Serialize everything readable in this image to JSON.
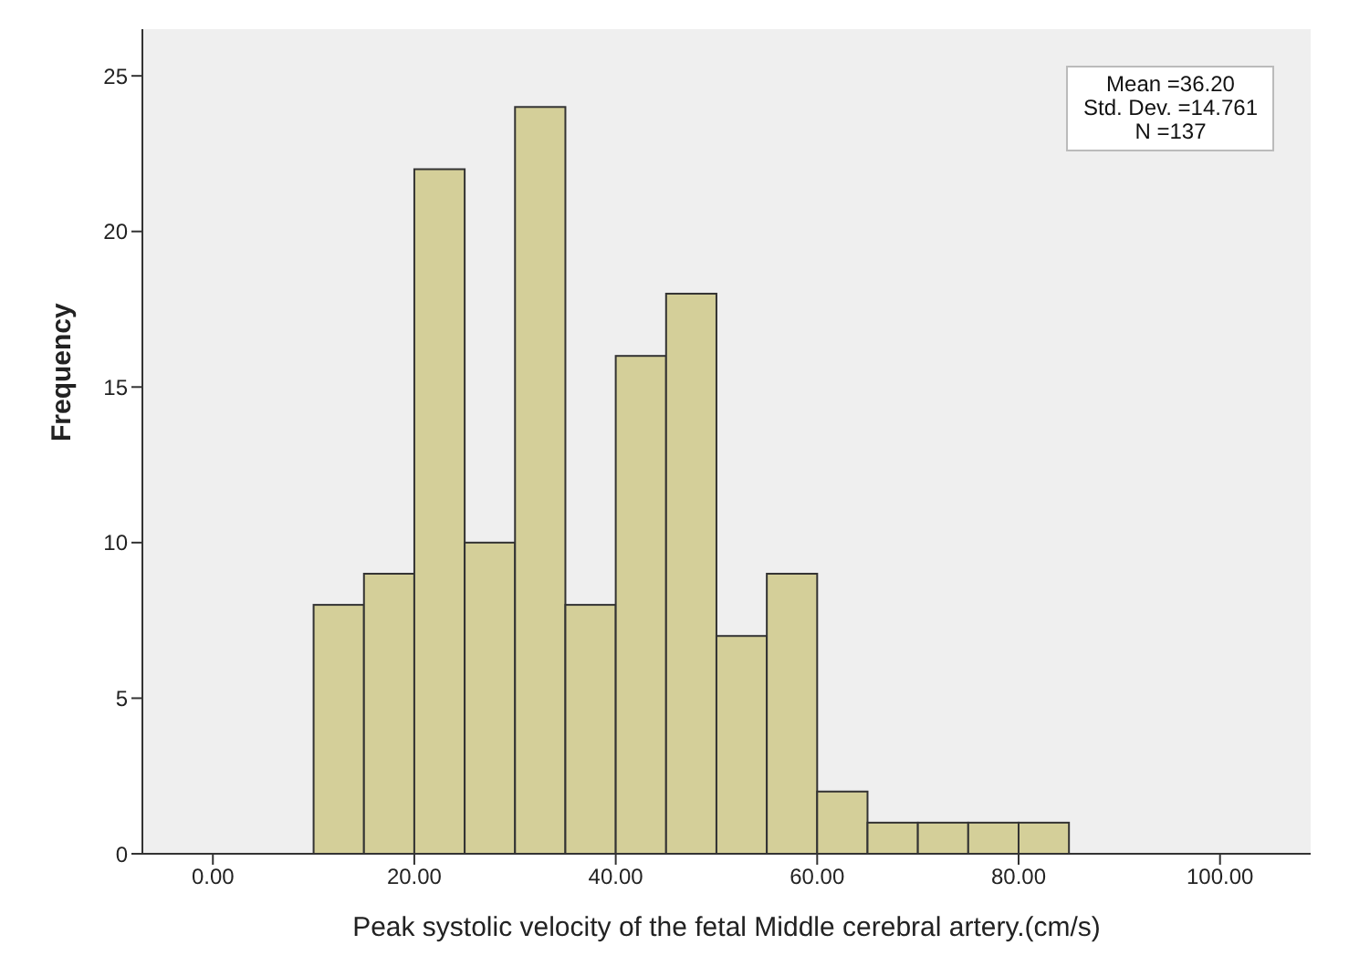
{
  "chart_data": {
    "type": "histogram",
    "xlabel": "Peak systolic velocity of the fetal Middle cerebral artery.(cm/s)",
    "ylabel": "Frequency",
    "bins": [
      10,
      15,
      20,
      25,
      30,
      35,
      40,
      45,
      50,
      55,
      60,
      65,
      70,
      75,
      80,
      85
    ],
    "values": [
      8,
      9,
      22,
      10,
      24,
      8,
      16,
      18,
      7,
      9,
      2,
      1,
      1,
      1,
      1
    ],
    "color": "#d4cf99",
    "xlim": [
      -7,
      109
    ],
    "xticks": [
      {
        "value": 0,
        "label": "0.00"
      },
      {
        "value": 20,
        "label": "20.00"
      },
      {
        "value": 40,
        "label": "40.00"
      },
      {
        "value": 60,
        "label": "60.00"
      },
      {
        "value": 80,
        "label": "80.00"
      },
      {
        "value": 100,
        "label": "100.00"
      }
    ],
    "ylim": [
      0,
      26.5
    ],
    "yticks": [
      0,
      5,
      10,
      15,
      20,
      25
    ],
    "annotations": [
      "Mean =36.20",
      "Std. Dev. =14.761",
      "N =137"
    ]
  }
}
